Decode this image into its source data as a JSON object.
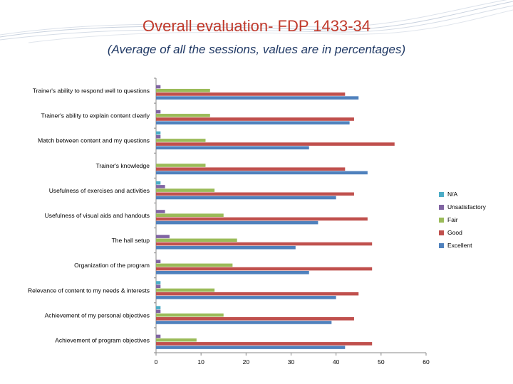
{
  "title": "Overall evaluation- FDP 1433-34",
  "subtitle": "(Average  of all the sessions, values are in percentages)",
  "chart_data": {
    "type": "bar",
    "orientation": "horizontal",
    "title": "",
    "xlabel": "",
    "ylabel": "",
    "xlim": [
      0,
      60
    ],
    "xticks": [
      0,
      10,
      20,
      30,
      40,
      50,
      60
    ],
    "grid": false,
    "legend_position": "right",
    "categories": [
      "Trainer's ability to respond well to questions",
      "Trainer's ability to explain content clearly",
      "Match between content and my questions",
      "Trainer's knowledge",
      "Usefulness of exercises and activities",
      "Usefulness of visual aids and handouts",
      "The hall setup",
      "Organization of the program",
      "Relevance of content to my needs & interests",
      "Achievement of my personal objectives",
      "Achievement of program objectives"
    ],
    "series": [
      {
        "name": "N/A",
        "color": "#4bacc6",
        "values": [
          0,
          0,
          1,
          0,
          1,
          0,
          0,
          0,
          1,
          1,
          0
        ]
      },
      {
        "name": "Unsatisfactory",
        "color": "#8064a2",
        "values": [
          1,
          1,
          1,
          0,
          2,
          2,
          3,
          1,
          1,
          1,
          1
        ]
      },
      {
        "name": "Fair",
        "color": "#9bbb59",
        "values": [
          12,
          12,
          11,
          11,
          13,
          15,
          18,
          17,
          13,
          15,
          9
        ]
      },
      {
        "name": "Good",
        "color": "#c0504d",
        "values": [
          42,
          44,
          53,
          42,
          44,
          47,
          48,
          48,
          45,
          44,
          48
        ]
      },
      {
        "name": "Excellent",
        "color": "#4f81bd",
        "values": [
          45,
          43,
          34,
          47,
          40,
          36,
          31,
          34,
          40,
          39,
          42
        ]
      }
    ]
  }
}
